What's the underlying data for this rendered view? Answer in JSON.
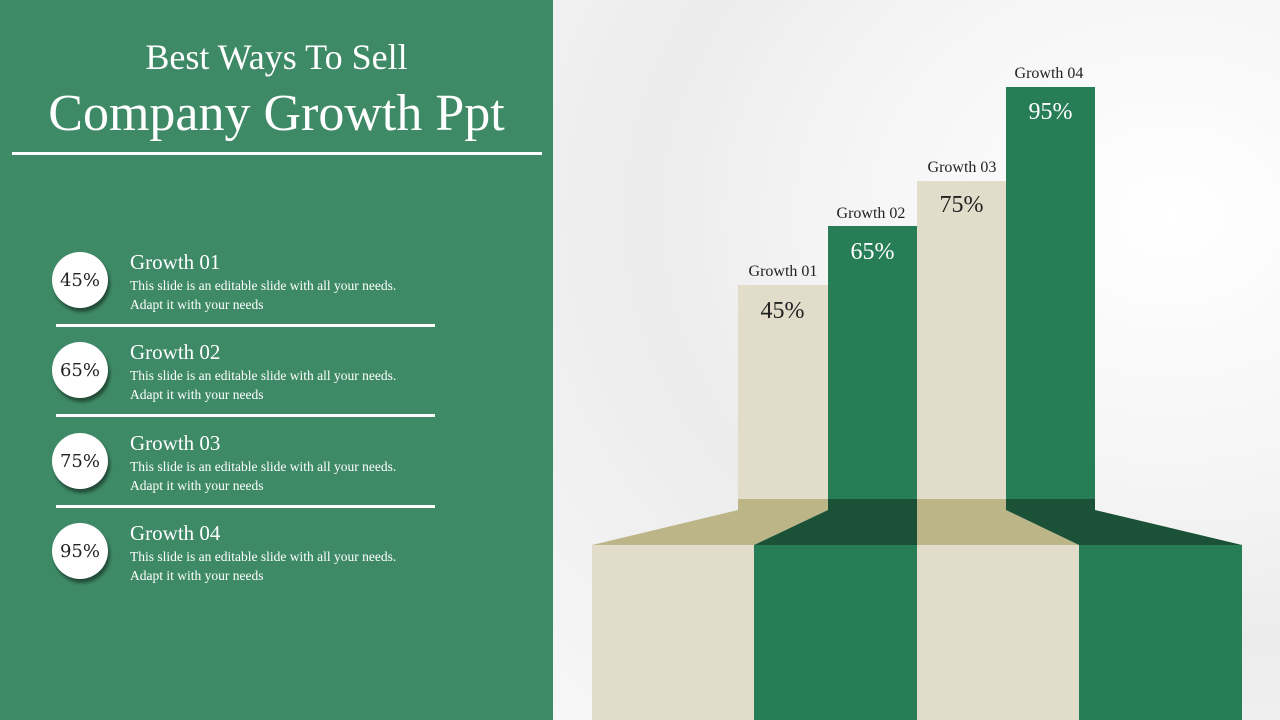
{
  "title_line1": "Best Ways To Sell",
  "title_line2": "Company Growth Ppt",
  "items": [
    {
      "value": "45%",
      "title": "Growth 01",
      "desc": "This slide is an editable slide with all your needs. Adapt it with your needs"
    },
    {
      "value": "65%",
      "title": "Growth 02",
      "desc": "This slide is an editable slide with all your needs. Adapt it with your needs"
    },
    {
      "value": "75%",
      "title": "Growth 03",
      "desc": "This slide is an editable slide with all your needs. Adapt it with your needs"
    },
    {
      "value": "95%",
      "title": "Growth 04",
      "desc": "This slide is an editable slide with all your needs. Adapt it with your needs"
    }
  ],
  "colors": {
    "panel": "#3e8a66",
    "green": "#277d55",
    "beige": "#e1ddca",
    "dark_green": "#1b5237",
    "dark_beige": "#bcb588"
  }
}
